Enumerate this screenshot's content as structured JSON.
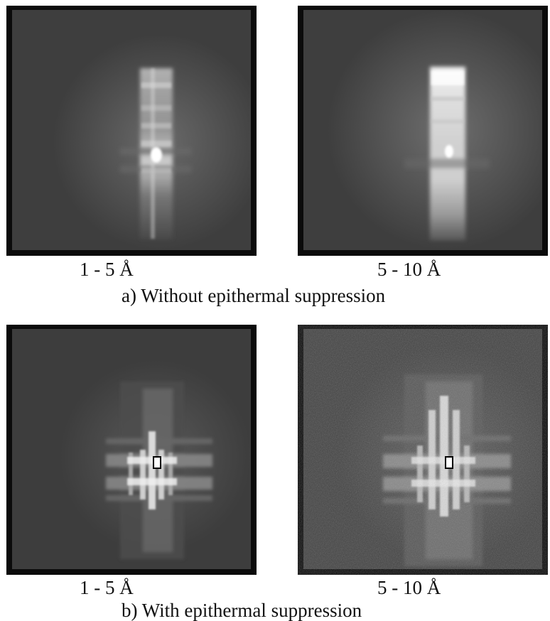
{
  "figure": {
    "panels": [
      {
        "caption": "1 - 5 Å",
        "group": "a",
        "pattern": "vertical-bands",
        "intensity": 0.85
      },
      {
        "caption": "5 - 10 Å",
        "group": "a",
        "pattern": "vertical-bands",
        "intensity": 1.0
      },
      {
        "caption": "1 - 5 Å",
        "group": "b",
        "pattern": "cross-grid",
        "intensity": 0.8
      },
      {
        "caption": "5 - 10 Å",
        "group": "b",
        "pattern": "cross-grid-noisy",
        "intensity": 0.95
      }
    ],
    "section_a_label": "a) Without epithermal suppression",
    "section_b_label": "b) With epithermal suppression"
  },
  "colors": {
    "frame": "#0b0b0b",
    "field": "#3d3d3d",
    "glow": "#ffffff",
    "marker": "#000000"
  }
}
